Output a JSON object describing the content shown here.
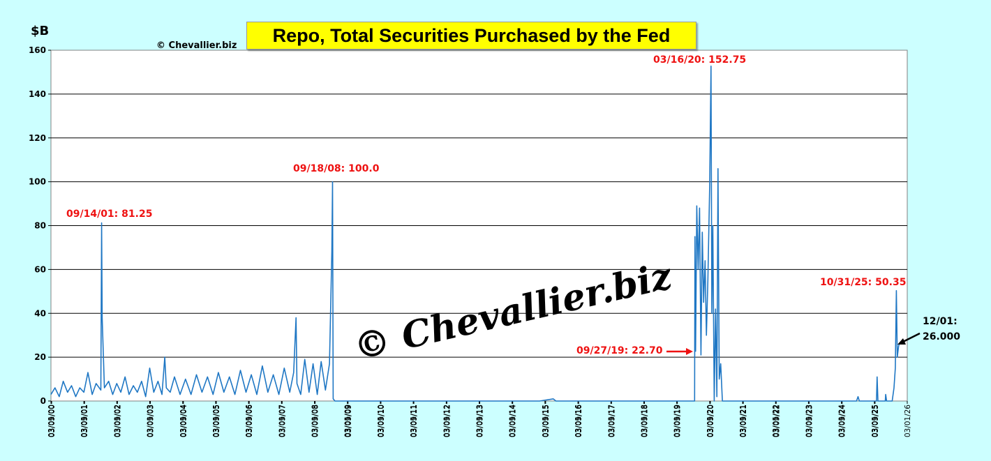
{
  "title": "Repo, Total Securities Purchased by the Fed",
  "unit_label": "$B",
  "copyright_small": "© Chevallier.biz",
  "watermark": "© Chevallier.biz",
  "colors": {
    "background": "#ccffff",
    "plot_bg": "#ffffff",
    "line": "#1f77c4",
    "annotation": "#ee1111",
    "title_bg": "#ffff00"
  },
  "annotations": {
    "a2001": "09/14/01: 81.25",
    "a2008": "09/18/08: 100.0",
    "a2019": "09/27/19: 22.70",
    "a2020": "03/16/20: 152.75",
    "a2025": "10/31/25: 50.35",
    "latest_date": "12/01:",
    "latest_value": "26.000"
  },
  "chart_data": {
    "type": "line",
    "title": "Repo, Total Securities Purchased by the Fed",
    "ylabel": "$B",
    "ylim": [
      0,
      160
    ],
    "yticks": [
      0,
      20,
      40,
      60,
      80,
      100,
      120,
      140,
      160
    ],
    "grid": true,
    "xlim": [
      "2000-03-01",
      "2026-03-01"
    ],
    "xtick_labels": [
      "03/01/00",
      "03/05/00",
      "03/09/00",
      "03/01/01",
      "03/05/01",
      "03/09/01",
      "03/01/02",
      "03/05/02",
      "03/09/02",
      "03/01/03",
      "03/05/03",
      "03/09/03",
      "03/01/04",
      "03/05/04",
      "03/09/04",
      "03/01/05",
      "03/05/05",
      "03/09/05",
      "03/01/06",
      "03/05/06",
      "03/09/06",
      "03/01/07",
      "03/05/07",
      "03/09/07",
      "03/01/08",
      "03/05/08",
      "03/09/08",
      "03/01/09",
      "03/05/09",
      "03/09/09",
      "03/01/10",
      "03/05/10",
      "03/09/10",
      "03/01/11",
      "03/05/11",
      "03/09/11",
      "03/01/12",
      "03/05/12",
      "03/09/12",
      "03/01/13",
      "03/05/13",
      "03/09/13",
      "03/01/14",
      "03/05/14",
      "03/09/14",
      "03/01/15",
      "03/05/15",
      "03/09/15",
      "03/01/16",
      "03/05/16",
      "03/09/16",
      "03/01/17",
      "03/05/17",
      "03/09/17",
      "03/01/18",
      "03/05/18",
      "03/09/18",
      "03/01/19",
      "03/05/19",
      "03/09/19",
      "03/01/20",
      "03/05/20",
      "03/09/20",
      "03/01/21",
      "03/05/21",
      "03/09/21",
      "03/01/22",
      "03/05/22",
      "03/09/22",
      "03/01/23",
      "03/05/23",
      "03/09/23",
      "03/01/24",
      "03/05/24",
      "03/09/24",
      "03/01/25",
      "03/05/25",
      "03/09/25",
      "03/01/26"
    ],
    "series": [
      {
        "values": [
          [
            "2000-03-01",
            3
          ],
          [
            "2000-04-15",
            6
          ],
          [
            "2000-06-01",
            2
          ],
          [
            "2000-07-15",
            9
          ],
          [
            "2000-09-01",
            4
          ],
          [
            "2000-10-15",
            7
          ],
          [
            "2000-12-01",
            2
          ],
          [
            "2001-01-15",
            6
          ],
          [
            "2001-03-01",
            4
          ],
          [
            "2001-04-15",
            13
          ],
          [
            "2001-06-01",
            3
          ],
          [
            "2001-07-15",
            8
          ],
          [
            "2001-09-05",
            5
          ],
          [
            "2001-09-14",
            81.25
          ],
          [
            "2001-09-20",
            38
          ],
          [
            "2001-10-15",
            6
          ],
          [
            "2001-12-01",
            9
          ],
          [
            "2002-01-15",
            3
          ],
          [
            "2002-03-01",
            8
          ],
          [
            "2002-04-15",
            4
          ],
          [
            "2002-06-01",
            11
          ],
          [
            "2002-07-15",
            3
          ],
          [
            "2002-09-01",
            7
          ],
          [
            "2002-10-15",
            4
          ],
          [
            "2002-12-01",
            9
          ],
          [
            "2003-01-15",
            2
          ],
          [
            "2003-03-01",
            15
          ],
          [
            "2003-04-15",
            4
          ],
          [
            "2003-06-01",
            9
          ],
          [
            "2003-07-15",
            3
          ],
          [
            "2003-08-15",
            20
          ],
          [
            "2003-09-01",
            6
          ],
          [
            "2003-10-15",
            4
          ],
          [
            "2003-12-01",
            11
          ],
          [
            "2004-02-01",
            3
          ],
          [
            "2004-04-01",
            10
          ],
          [
            "2004-06-01",
            3
          ],
          [
            "2004-08-01",
            12
          ],
          [
            "2004-10-01",
            4
          ],
          [
            "2004-12-01",
            11
          ],
          [
            "2005-02-01",
            3
          ],
          [
            "2005-04-01",
            13
          ],
          [
            "2005-06-01",
            4
          ],
          [
            "2005-08-01",
            11
          ],
          [
            "2005-10-01",
            3
          ],
          [
            "2005-12-01",
            14
          ],
          [
            "2006-02-01",
            4
          ],
          [
            "2006-04-01",
            12
          ],
          [
            "2006-06-01",
            3
          ],
          [
            "2006-08-01",
            16
          ],
          [
            "2006-10-01",
            4
          ],
          [
            "2006-12-01",
            12
          ],
          [
            "2007-02-01",
            3
          ],
          [
            "2007-04-01",
            15
          ],
          [
            "2007-06-01",
            4
          ],
          [
            "2007-07-15",
            13
          ],
          [
            "2007-08-10",
            38
          ],
          [
            "2007-08-20",
            8
          ],
          [
            "2007-10-01",
            3
          ],
          [
            "2007-11-15",
            19
          ],
          [
            "2008-01-01",
            4
          ],
          [
            "2008-02-15",
            17
          ],
          [
            "2008-04-01",
            3
          ],
          [
            "2008-05-15",
            18
          ],
          [
            "2008-07-01",
            5
          ],
          [
            "2008-08-15",
            17
          ],
          [
            "2008-09-10",
            68
          ],
          [
            "2008-09-18",
            100.0
          ],
          [
            "2008-09-25",
            1
          ],
          [
            "2008-10-15",
            0
          ],
          [
            "2015-01-01",
            0
          ],
          [
            "2015-06-01",
            1
          ],
          [
            "2015-07-01",
            0
          ],
          [
            "2019-08-01",
            0
          ],
          [
            "2019-09-16",
            0
          ],
          [
            "2019-09-20",
            75
          ],
          [
            "2019-09-27",
            22.7
          ],
          [
            "2019-10-10",
            89
          ],
          [
            "2019-10-25",
            60
          ],
          [
            "2019-11-10",
            88
          ],
          [
            "2019-11-25",
            21
          ],
          [
            "2019-12-10",
            77
          ],
          [
            "2019-12-25",
            45
          ],
          [
            "2020-01-10",
            64
          ],
          [
            "2020-01-25",
            30
          ],
          [
            "2020-02-10",
            55
          ],
          [
            "2020-03-01",
            98
          ],
          [
            "2020-03-16",
            152.75
          ],
          [
            "2020-03-25",
            40
          ],
          [
            "2020-04-05",
            80
          ],
          [
            "2020-04-20",
            0
          ],
          [
            "2020-05-05",
            42
          ],
          [
            "2020-05-20",
            2
          ],
          [
            "2020-06-01",
            106
          ],
          [
            "2020-06-15",
            10
          ],
          [
            "2020-07-01",
            17
          ],
          [
            "2020-07-20",
            0
          ],
          [
            "2024-08-15",
            0
          ],
          [
            "2024-09-01",
            2
          ],
          [
            "2024-09-15",
            0
          ],
          [
            "2025-03-25",
            0
          ],
          [
            "2025-04-01",
            11
          ],
          [
            "2025-04-10",
            0
          ],
          [
            "2025-06-30",
            0
          ],
          [
            "2025-07-05",
            3
          ],
          [
            "2025-07-15",
            0
          ],
          [
            "2025-09-15",
            0
          ],
          [
            "2025-10-05",
            6
          ],
          [
            "2025-10-20",
            15
          ],
          [
            "2025-10-31",
            50.35
          ],
          [
            "2025-11-10",
            20
          ],
          [
            "2025-11-25",
            25
          ],
          [
            "2025-12-01",
            26.0
          ]
        ]
      }
    ]
  }
}
